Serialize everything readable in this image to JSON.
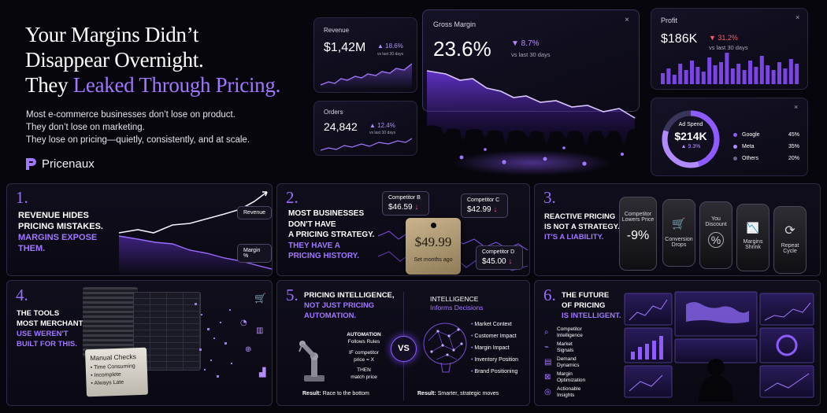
{
  "headline": {
    "line1": "Your Margins Didn’t",
    "line2": "Disappear Overnight.",
    "line3_prefix": "They ",
    "line3_accent": "Leaked Through Pricing."
  },
  "intro": {
    "p1": "Most e-commerce businesses don’t lose on product.",
    "p2": "They don’t lose on marketing.",
    "p3": "They lose on pricing—quietly, consistently, and at scale."
  },
  "brand": {
    "name": "Pricenaux"
  },
  "kpis": {
    "revenue": {
      "label": "Revenue",
      "value": "$1,42M",
      "change": "▲ 18.6%",
      "period": "vs last 30 days"
    },
    "orders": {
      "label": "Orders",
      "value": "24,842",
      "change": "▲ 12.4%",
      "period": "vs last 30 days"
    },
    "gross_margin": {
      "label": "Gross Margin",
      "value": "23.6%",
      "change": "▼ 8.7%",
      "period": "vs last 30 days",
      "close": "×"
    },
    "profit": {
      "label": "Profit",
      "value": "$186K",
      "change": "▼ 31.2%",
      "period": "vs last 30 days",
      "close": "×"
    },
    "ad_spend": {
      "label": "Ad Spend",
      "value": "$214K",
      "change": "▲ 9.3%",
      "close": "×",
      "rows": [
        {
          "name": "Google",
          "pct": "45%",
          "color": "#8d5bff"
        },
        {
          "name": "Meta",
          "pct": "35%",
          "color": "#b08aff"
        },
        {
          "name": "Others",
          "pct": "20%",
          "color": "#6b6685"
        }
      ]
    }
  },
  "panels": {
    "p1": {
      "num": "1.",
      "l1": "Revenue hides",
      "l2": "pricing mistakes.",
      "a1": "Margins expose",
      "a2": "them.",
      "tag_revenue": "Revenue",
      "tag_margin": "Margin %"
    },
    "p2": {
      "num": "2.",
      "l1": "Most businesses",
      "l2": "don't have",
      "l3": "a pricing strategy.",
      "a1": "They have a",
      "a2": "pricing history.",
      "comp_b": {
        "label": "Competitor B",
        "price": "$46.59"
      },
      "comp_c": {
        "label": "Competitor C",
        "price": "$42.99"
      },
      "comp_d": {
        "label": "Competitor D",
        "price": "$45.00"
      },
      "price_tag": {
        "price": "$49.99",
        "note": "Set months ago"
      }
    },
    "p3": {
      "num": "3.",
      "l1": "Reactive pricing",
      "l2": "is not a strategy.",
      "a1": "It's a liability.",
      "phones": [
        {
          "title": "Competitor Lowers Price",
          "value": "-9%"
        },
        {
          "title": "Conversion Drops",
          "icon": "🛒"
        },
        {
          "title": "You Discount",
          "icon": "%"
        },
        {
          "title": "Margins Shrink",
          "icon": "📉"
        },
        {
          "title": "Repeat Cycle",
          "icon": "⟳"
        }
      ]
    },
    "p4": {
      "num": "4.",
      "l1": "The tools",
      "l2": "most merchants",
      "a1": "use weren't",
      "a2": "built for this.",
      "card_title": "Manual Checks",
      "checks": [
        "• Time Consuming",
        "• Incomplete",
        "• Always Late"
      ]
    },
    "p5": {
      "num": "5.",
      "l1": "Pricing intelligence,",
      "a1": "not just pricing",
      "a2": "automation.",
      "automation": {
        "title": "AUTOMATION",
        "sub": "Follows Rules",
        "rule1": "IF competitor",
        "rule2": "price = X",
        "rule3": "THEN",
        "rule4": "match price"
      },
      "vs": "VS",
      "intelligence": {
        "title": "INTELLIGENCE",
        "sub": "Informs Decisions"
      },
      "factors": [
        "Market Context",
        "Customer Impact",
        "Margin Impact",
        "Inventory Position",
        "Brand Positioning"
      ],
      "result_left_label": "Result:",
      "result_left": "Race to the bottom",
      "result_right_label": "Result:",
      "result_right": "Smarter, strategic moves"
    },
    "p6": {
      "num": "6.",
      "l1": "The future",
      "l2": "of pricing",
      "a1": "is intelligent.",
      "items": [
        {
          "l1": "Competitor",
          "l2": "Intelligence",
          "icon": "⌕"
        },
        {
          "l1": "Market",
          "l2": "Signals",
          "icon": "⌁"
        },
        {
          "l1": "Demand",
          "l2": "Dynamics",
          "icon": "▤"
        },
        {
          "l1": "Margin",
          "l2": "Optimization",
          "icon": "⊠"
        },
        {
          "l1": "Actionable",
          "l2": "Insights",
          "icon": "◎"
        }
      ]
    }
  }
}
